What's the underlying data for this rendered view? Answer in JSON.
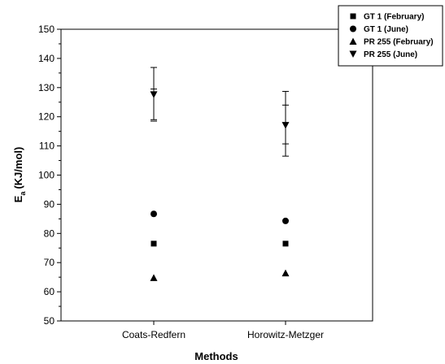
{
  "chart_data": {
    "type": "scatter",
    "title": "",
    "xlabel": "Methods",
    "ylabel_main": "E",
    "ylabel_sub": "a",
    "ylabel_unit": "(KJ/mol)",
    "categories": [
      "Coats-Redfern",
      "Horowitz-Metzger"
    ],
    "ylim": [
      50,
      150
    ],
    "yticks": [
      50,
      60,
      70,
      80,
      90,
      100,
      110,
      120,
      130,
      140,
      150
    ],
    "legend_position": "top-right",
    "series": [
      {
        "name": "GT 1 (February)",
        "marker": "square",
        "values": [
          76.5,
          76.5
        ]
      },
      {
        "name": "GT 1 (June)",
        "marker": "circle",
        "values": [
          86.7,
          84.3
        ]
      },
      {
        "name": "PR 255 (February)",
        "marker": "triangle-up",
        "values": [
          64.8,
          66.4
        ]
      },
      {
        "name": "PR 255 (June)",
        "marker": "triangle-down",
        "values": [
          127.6,
          117.1
        ],
        "errors": [
          {
            "low": 119.0,
            "high": 136.9,
            "inner_low": 118.5,
            "inner_high": 129.5
          },
          {
            "low": 106.5,
            "high": 128.7,
            "inner_low": 110.7,
            "inner_high": 124.0
          }
        ]
      }
    ]
  }
}
